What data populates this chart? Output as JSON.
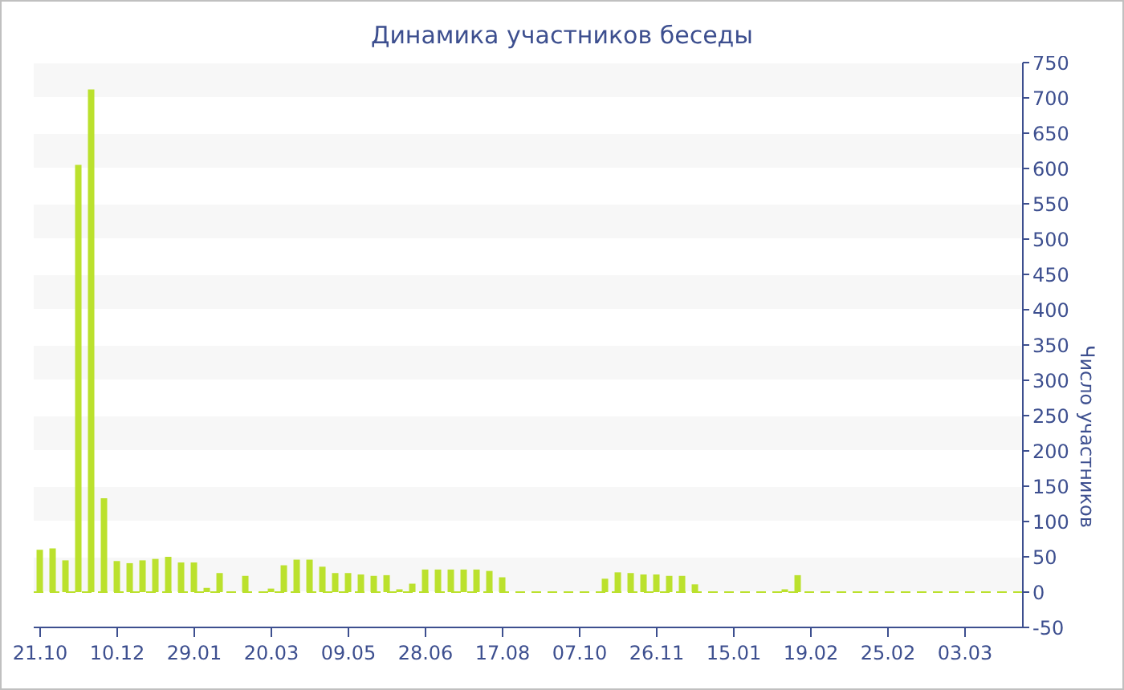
{
  "chart_data": {
    "type": "bar",
    "title": "Динамика участников беседы",
    "ylabel": "Число участников",
    "categories": [
      "21.10",
      null,
      null,
      null,
      null,
      null,
      "10.12",
      null,
      null,
      null,
      null,
      null,
      "29.01",
      null,
      null,
      null,
      null,
      null,
      "20.03",
      null,
      null,
      null,
      null,
      null,
      "09.05",
      null,
      null,
      null,
      null,
      null,
      "28.06",
      null,
      null,
      null,
      null,
      null,
      "17.08",
      null,
      null,
      null,
      null,
      null,
      "07.10",
      null,
      null,
      null,
      null,
      null,
      "26.11",
      null,
      null,
      null,
      null,
      null,
      "15.01",
      null,
      null,
      null,
      null,
      null,
      "19.02",
      null,
      null,
      null,
      null,
      null,
      "25.02",
      null,
      null,
      null,
      null,
      null,
      "03.03",
      null,
      null,
      null,
      null
    ],
    "values": [
      60,
      62,
      45,
      605,
      712,
      133,
      44,
      41,
      45,
      47,
      50,
      42,
      42,
      6,
      27,
      0,
      23,
      0,
      5,
      38,
      46,
      46,
      36,
      27,
      27,
      25,
      23,
      24,
      4,
      12,
      32,
      32,
      32,
      32,
      32,
      30,
      21,
      0,
      0,
      0,
      0,
      0,
      0,
      0,
      19,
      28,
      27,
      25,
      25,
      23,
      23,
      11,
      0,
      0,
      0,
      0,
      0,
      0,
      4,
      24,
      0,
      0,
      0,
      0,
      0,
      0,
      0,
      0,
      0,
      0,
      0,
      0,
      0,
      0,
      0,
      0,
      0
    ],
    "color": "#bbe12d",
    "ylim": [
      -50,
      750
    ],
    "yticks": [
      -50,
      0,
      50,
      100,
      150,
      200,
      250,
      300,
      350,
      400,
      450,
      500,
      550,
      600,
      650,
      700,
      750
    ],
    "grid": "y",
    "ref_lines": [
      {
        "axis": "y",
        "value": 0,
        "color": "#bbe12d",
        "line_style": "dashed"
      }
    ]
  }
}
